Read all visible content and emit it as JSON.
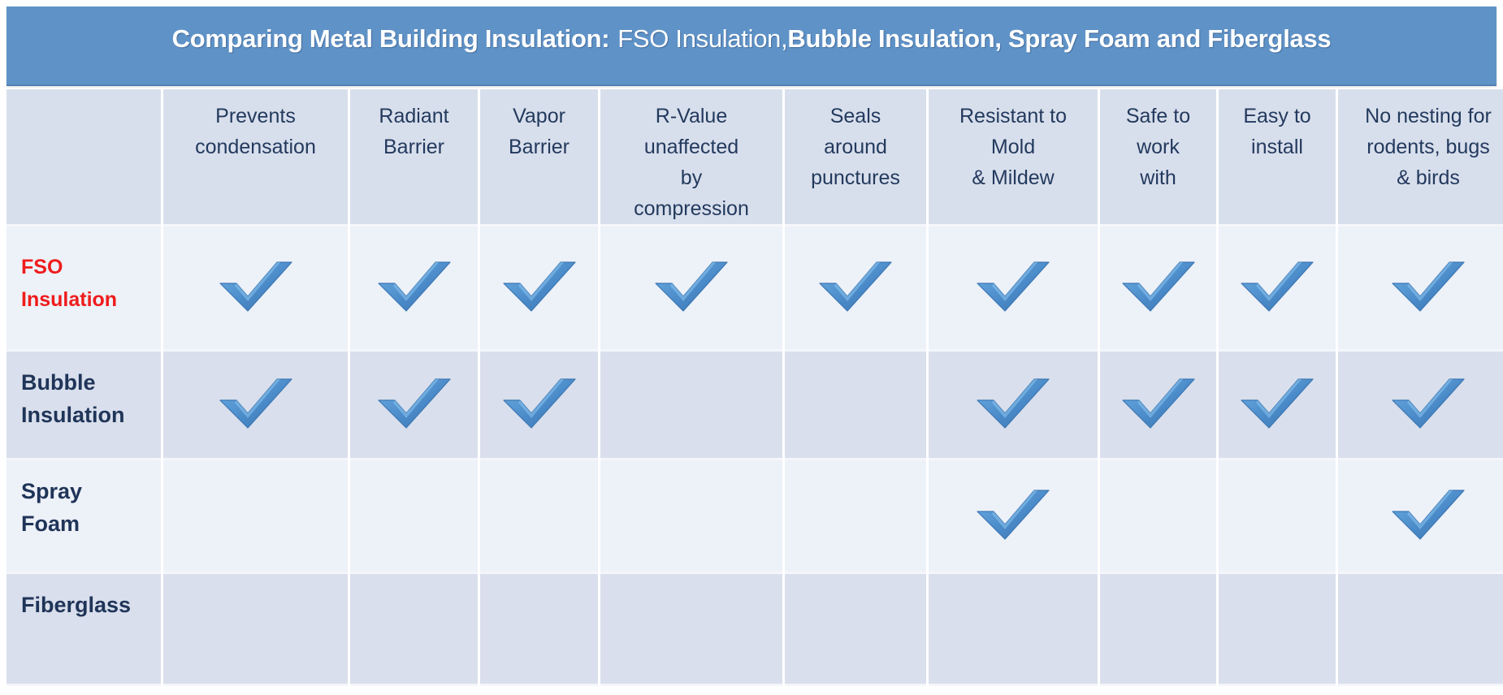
{
  "title": {
    "main": "Comparing Metal Building Insulation:",
    "sub": "FSO Insulation,",
    "rest": "Bubble Insulation, Spray Foam and Fiberglass"
  },
  "colors": {
    "title_bar": "#5f93c8",
    "header_bg": "#d8dfec",
    "row_light": "#edf1f8",
    "row_dark": "#d9dfec",
    "check": "#4a8ac8",
    "accent_label": "#ee1c1c",
    "text": "#1f3458"
  },
  "columns": [
    {
      "label": "Prevents condensation"
    },
    {
      "label": "Radiant Barrier"
    },
    {
      "label": "Vapor Barrier"
    },
    {
      "label": "R-Value unaffected by compression"
    },
    {
      "label": "Seals around punctures"
    },
    {
      "label": "Resistant to Mold & Mildew"
    },
    {
      "label": "Safe to work with"
    },
    {
      "label": "Easy to install"
    },
    {
      "label": "No nesting for rodents, bugs & birds"
    }
  ],
  "column_lines": [
    [
      "Prevents",
      "condensation"
    ],
    [
      "Radiant",
      "Barrier"
    ],
    [
      "Vapor",
      "Barrier"
    ],
    [
      "R-Value",
      "unaffected",
      "by",
      "compression"
    ],
    [
      "Seals",
      "around",
      "punctures"
    ],
    [
      "Resistant to",
      "Mold",
      "& Mildew"
    ],
    [
      "Safe to",
      "work",
      "with"
    ],
    [
      "Easy to",
      "install"
    ],
    [
      "No nesting for",
      "rodents, bugs",
      "& birds"
    ]
  ],
  "rows": [
    {
      "label_lines": [
        "FSO",
        "Insulation"
      ],
      "highlight": true,
      "checks": [
        true,
        true,
        true,
        true,
        true,
        true,
        true,
        true,
        true
      ]
    },
    {
      "label_lines": [
        "Bubble",
        "Insulation"
      ],
      "highlight": false,
      "checks": [
        true,
        true,
        true,
        false,
        false,
        true,
        true,
        true,
        true
      ]
    },
    {
      "label_lines": [
        "Spray",
        "Foam"
      ],
      "highlight": false,
      "checks": [
        false,
        false,
        false,
        false,
        false,
        true,
        false,
        false,
        true
      ]
    },
    {
      "label_lines": [
        "Fiberglass"
      ],
      "highlight": false,
      "checks": [
        false,
        false,
        false,
        false,
        false,
        false,
        false,
        false,
        false
      ]
    }
  ],
  "icons": {
    "check": "checkmark-icon"
  }
}
